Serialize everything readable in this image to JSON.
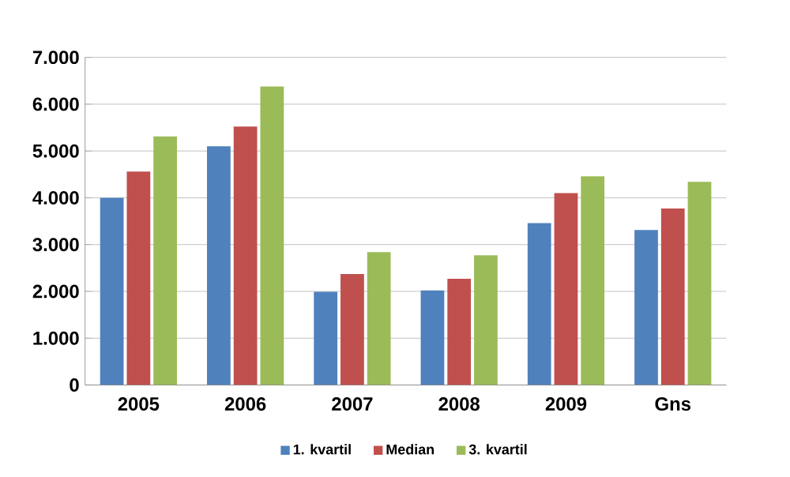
{
  "chart_data": {
    "type": "bar",
    "categories": [
      "2005",
      "2006",
      "2007",
      "2008",
      "2009",
      "Gns"
    ],
    "series": [
      {
        "name": "1. kvartil",
        "color": "#4f81bd",
        "values": [
          4000,
          5100,
          1990,
          2020,
          3460,
          3310
        ]
      },
      {
        "name": "Median",
        "color": "#c0504d",
        "values": [
          4560,
          5520,
          2370,
          2270,
          4100,
          3770
        ]
      },
      {
        "name": "3. kvartil",
        "color": "#9bbb59",
        "values": [
          5310,
          6380,
          2840,
          2770,
          4460,
          4340
        ]
      }
    ],
    "ylim": [
      0,
      7000
    ],
    "yticks": [
      0,
      {
        "value": 1000,
        "label": "1.000"
      },
      {
        "value": 2000,
        "label": "2.000"
      },
      {
        "value": 3000,
        "label": "3.000"
      },
      {
        "value": 4000,
        "label": "4.000"
      },
      {
        "value": 5000,
        "label": "5.000"
      },
      {
        "value": 6000,
        "label": "6.000"
      },
      {
        "value": 7000,
        "label": "7.000"
      }
    ],
    "grid": "y",
    "legend": "bottom"
  }
}
